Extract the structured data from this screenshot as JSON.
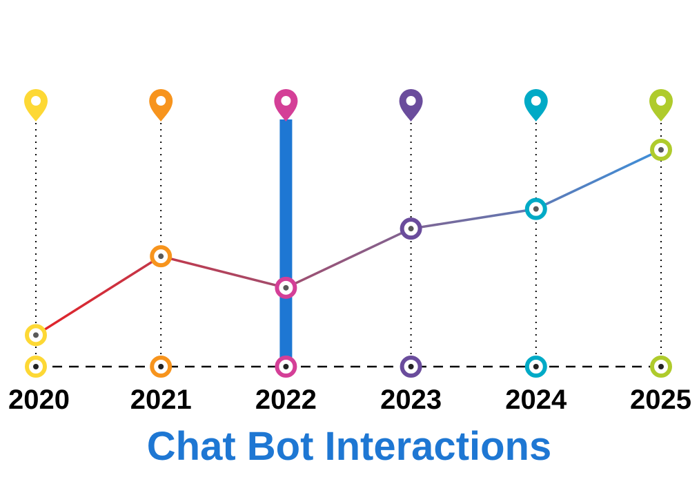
{
  "chart_data": {
    "type": "line",
    "title": "Chat Bot Interactions",
    "categories": [
      "2020",
      "2021",
      "2022",
      "2023",
      "2024",
      "2025"
    ],
    "values": [
      8,
      28,
      20,
      35,
      40,
      55
    ],
    "ylim": [
      0,
      60
    ],
    "xlabel": "",
    "ylabel": "",
    "grid": false,
    "highlight_category": "2022",
    "marker_colors": [
      "#FDD835",
      "#F7941D",
      "#D43F97",
      "#6A4C9C",
      "#00AAC6",
      "#AFCB2C"
    ],
    "line_gradient": [
      "#E32227",
      "#3D8FD9"
    ],
    "highlight_color": "#1E77D3",
    "title_color": "#1E77D3"
  }
}
